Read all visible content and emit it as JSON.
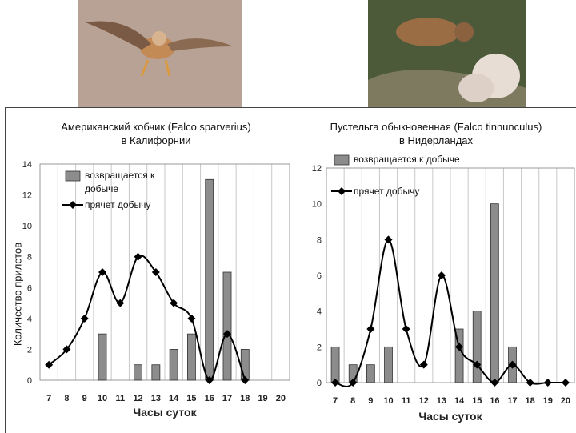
{
  "photos": {
    "left": "kestrel-in-flight-photo",
    "right": "kestrel-on-nest-with-chicks-photo"
  },
  "chart_data": [
    {
      "type": "bar+line",
      "title_line1": "Американский кобчик (Falco sparverius)",
      "title_line2": "в Калифорнии",
      "xlabel": "Часы суток",
      "ylabel": "Количество прилетов",
      "x": [
        7,
        8,
        9,
        10,
        11,
        12,
        13,
        14,
        15,
        16,
        17,
        18,
        19,
        20
      ],
      "ylim": [
        0,
        14
      ],
      "yticks": [
        0,
        2,
        4,
        6,
        8,
        10,
        12,
        14
      ],
      "grid": true,
      "legend_position": "top-left",
      "series": [
        {
          "name": "возвращается к добыче",
          "kind": "bar",
          "color": "#8c8c8c",
          "values": [
            0,
            0,
            0,
            3,
            0,
            1,
            1,
            2,
            3,
            13,
            7,
            2,
            0,
            0
          ]
        },
        {
          "name": "прячет добычу",
          "kind": "line",
          "color": "#000000",
          "values": [
            1,
            2,
            4,
            7,
            5,
            8,
            7,
            5,
            4,
            0,
            3,
            0,
            null,
            null
          ]
        }
      ]
    },
    {
      "type": "bar+line",
      "title_line1": "Пустельга обыкновенная (Falco tinnunculus)",
      "title_line2": "в Нидерландах",
      "xlabel": "Часы суток",
      "ylabel": "",
      "x": [
        7,
        8,
        9,
        10,
        11,
        12,
        13,
        14,
        15,
        16,
        17,
        18,
        19,
        20
      ],
      "ylim": [
        0,
        12
      ],
      "yticks": [
        0,
        2,
        4,
        6,
        8,
        10,
        12
      ],
      "grid": true,
      "legend_position": "top-left",
      "series": [
        {
          "name": "возвращается к добыче",
          "kind": "bar",
          "color": "#8c8c8c",
          "values": [
            2,
            1,
            1,
            2,
            0,
            0,
            0,
            3,
            4,
            10,
            2,
            0,
            0,
            0
          ]
        },
        {
          "name": "прячет добычу",
          "kind": "line",
          "color": "#000000",
          "values": [
            0,
            0,
            3,
            8,
            3,
            1,
            6,
            2,
            1,
            0,
            1,
            0,
            0,
            0
          ]
        }
      ]
    }
  ]
}
